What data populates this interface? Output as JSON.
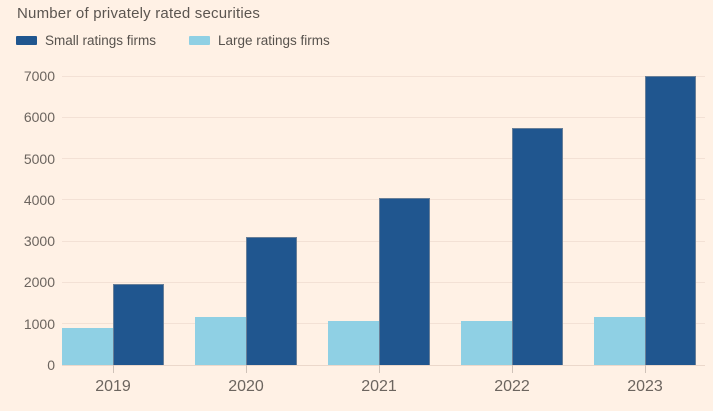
{
  "page": {
    "background": "#FFF1E5"
  },
  "chart_data": {
    "type": "bar",
    "title": "Number of privately rated securities",
    "categories": [
      "2019",
      "2020",
      "2021",
      "2022",
      "2023"
    ],
    "series": [
      {
        "name": "Small ratings firms",
        "color": "#20568F",
        "values": [
          1950,
          3100,
          4050,
          5730,
          7000
        ]
      },
      {
        "name": "Large ratings firms",
        "color": "#8FD0E4",
        "values": [
          900,
          1170,
          1070,
          1060,
          1170
        ]
      }
    ],
    "xlabel": "",
    "ylabel": "",
    "ylim": [
      0,
      7000
    ],
    "yticks": [
      0,
      1000,
      2000,
      3000,
      4000,
      5000,
      6000,
      7000
    ],
    "grid": true,
    "legend_position": "top-left"
  }
}
